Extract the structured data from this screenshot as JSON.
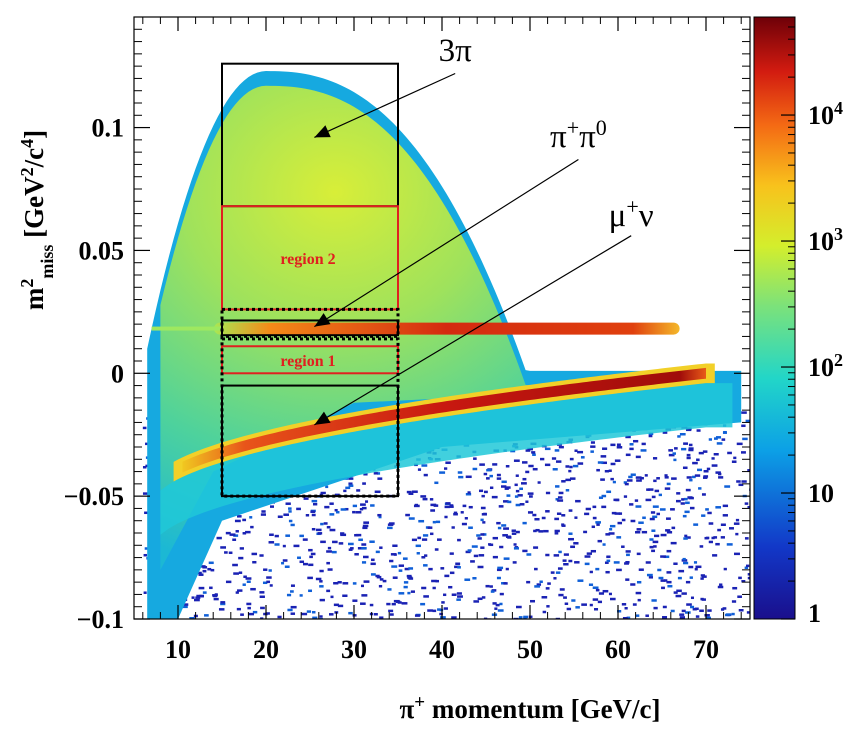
{
  "chart_data": {
    "type": "heatmap",
    "x": {
      "label": "π⁺ momentum [GeV/c]",
      "label_parts": [
        "π",
        "+",
        " momentum [GeV/c]"
      ],
      "range": [
        5,
        75
      ],
      "ticks": [
        10,
        20,
        30,
        40,
        50,
        60,
        70
      ],
      "tick_labels": [
        "10",
        "20",
        "30",
        "40",
        "50",
        "60",
        "70"
      ]
    },
    "y": {
      "label": "m²miss [GeV²/c⁴]",
      "label_parts": [
        "m",
        "2",
        "miss",
        " [GeV",
        "2",
        "/c",
        "4",
        "]"
      ],
      "range": [
        -0.1,
        0.145
      ],
      "ticks": [
        -0.1,
        -0.05,
        0,
        0.05,
        0.1
      ],
      "tick_labels": [
        "−0.1",
        "−0.05",
        "0",
        "0.05",
        "0.1"
      ]
    },
    "colorbar": {
      "scale": "log",
      "range": [
        1,
        60000
      ],
      "ticks": [
        1,
        10,
        100,
        1000,
        10000
      ],
      "tick_labels": [
        {
          "base": "1",
          "exp": ""
        },
        {
          "base": "10",
          "exp": ""
        },
        {
          "base": "10",
          "exp": "2"
        },
        {
          "base": "10",
          "exp": "3"
        },
        {
          "base": "10",
          "exp": "4"
        }
      ]
    },
    "boxes": [
      {
        "name": "3pi-region-box",
        "x": [
          15,
          35
        ],
        "y": [
          0.068,
          0.126
        ],
        "color": "#000000",
        "style": "solid"
      },
      {
        "name": "region-2-box",
        "x": [
          15,
          35
        ],
        "y": [
          0.026,
          0.068
        ],
        "color": "#e02020",
        "style": "solid",
        "label": "region 2"
      },
      {
        "name": "pipi0-box-outer",
        "x": [
          15,
          35
        ],
        "y": [
          0.015,
          0.026
        ],
        "color": "#000000",
        "style": "dotted"
      },
      {
        "name": "pipi0-box-inner",
        "x": [
          15,
          35
        ],
        "y": [
          0.0155,
          0.0215
        ],
        "color": "#000000",
        "style": "solid"
      },
      {
        "name": "region-1-box",
        "x": [
          15,
          35
        ],
        "y": [
          0.0,
          0.011
        ],
        "color": "#e02020",
        "style": "solid",
        "label": "region 1"
      },
      {
        "name": "mu-nu-box-dotted",
        "x": [
          15,
          35
        ],
        "y": [
          -0.05,
          0.014
        ],
        "color": "#000000",
        "style": "dotted"
      },
      {
        "name": "mu-nu-box-solid",
        "x": [
          15,
          35
        ],
        "y": [
          -0.05,
          -0.005
        ],
        "color": "#000000",
        "style": "solid"
      }
    ],
    "annotations": [
      {
        "name": "3pi-annotation",
        "parts": [
          {
            "t": "3π",
            "sup": false
          }
        ],
        "label_at": [
          41.5,
          0.127
        ],
        "arrow_from": [
          41.5,
          0.122
        ],
        "arrow_to": [
          25.5,
          0.096
        ]
      },
      {
        "name": "pi-pi0-annotation",
        "parts": [
          {
            "t": "π",
            "sup": false
          },
          {
            "t": "+",
            "sup": true
          },
          {
            "t": "π",
            "sup": false
          },
          {
            "t": "0",
            "sup": true
          }
        ],
        "label_at": [
          55.5,
          0.092
        ],
        "arrow_from": [
          55.5,
          0.087
        ],
        "arrow_to": [
          25.5,
          0.019
        ]
      },
      {
        "name": "mu-nu-annotation",
        "parts": [
          {
            "t": "μ",
            "sup": false
          },
          {
            "t": "+",
            "sup": true
          },
          {
            "t": "ν",
            "sup": false
          }
        ],
        "label_at": [
          61.5,
          0.06
        ],
        "arrow_from": [
          61.5,
          0.056
        ],
        "arrow_to": [
          25.5,
          -0.021
        ]
      }
    ],
    "bands": [
      {
        "name": "mu-nu-band",
        "description": "curved band from about -0.05 at 10 GeV/c rising to 0 at 70 GeV/c"
      },
      {
        "name": "pi-pi0-band",
        "value_y": 0.0182,
        "x_range": [
          15,
          67
        ]
      }
    ]
  }
}
